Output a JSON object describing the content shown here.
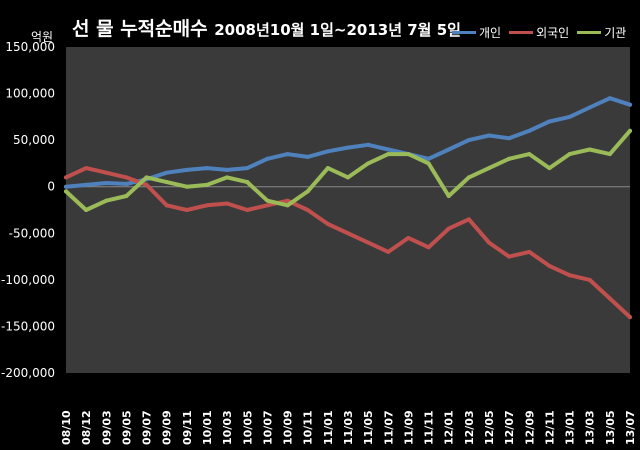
{
  "title_main": "선 물 누적순매수",
  "title_range": "2008년10월 1일~2013년 7월 5일",
  "chart_data": {
    "type": "line",
    "title": "선 물 누적순매수 2008년10월 1일~2013년 7월 5일",
    "ylabel": "억원",
    "ylim": [
      -200000,
      150000
    ],
    "yticks": [
      "150,000",
      "100,000",
      "50,000",
      "0",
      "-50,000",
      "-100,000",
      "-150,000",
      "-200,000"
    ],
    "grid": false,
    "legend_position": "top-right",
    "x": [
      "08/10",
      "08/12",
      "09/03",
      "09/05",
      "09/07",
      "09/09",
      "09/11",
      "10/01",
      "10/03",
      "10/05",
      "10/07",
      "10/09",
      "10/11",
      "11/01",
      "11/03",
      "11/05",
      "11/07",
      "11/09",
      "11/11",
      "12/01",
      "12/03",
      "12/05",
      "12/07",
      "12/09",
      "12/11",
      "13/01",
      "13/03",
      "13/05",
      "13/07"
    ],
    "series": [
      {
        "name": "개인",
        "color": "#4f81bd",
        "values": [
          0,
          2000,
          4000,
          3000,
          8000,
          15000,
          18000,
          20000,
          18000,
          20000,
          30000,
          35000,
          32000,
          38000,
          42000,
          45000,
          40000,
          35000,
          30000,
          40000,
          50000,
          55000,
          52000,
          60000,
          70000,
          75000,
          85000,
          95000,
          88000
        ]
      },
      {
        "name": "외국인",
        "color": "#c0504d",
        "values": [
          10000,
          20000,
          15000,
          10000,
          2000,
          -20000,
          -25000,
          -20000,
          -18000,
          -25000,
          -20000,
          -15000,
          -25000,
          -40000,
          -50000,
          -60000,
          -70000,
          -55000,
          -65000,
          -45000,
          -35000,
          -60000,
          -75000,
          -70000,
          -85000,
          -95000,
          -100000,
          -120000,
          -140000
        ]
      },
      {
        "name": "기관",
        "color": "#9bbb59",
        "values": [
          -5000,
          -25000,
          -15000,
          -10000,
          10000,
          5000,
          0,
          2000,
          10000,
          5000,
          -15000,
          -20000,
          -5000,
          20000,
          10000,
          25000,
          35000,
          35000,
          25000,
          -10000,
          10000,
          20000,
          30000,
          35000,
          20000,
          35000,
          40000,
          35000,
          60000
        ]
      }
    ]
  }
}
